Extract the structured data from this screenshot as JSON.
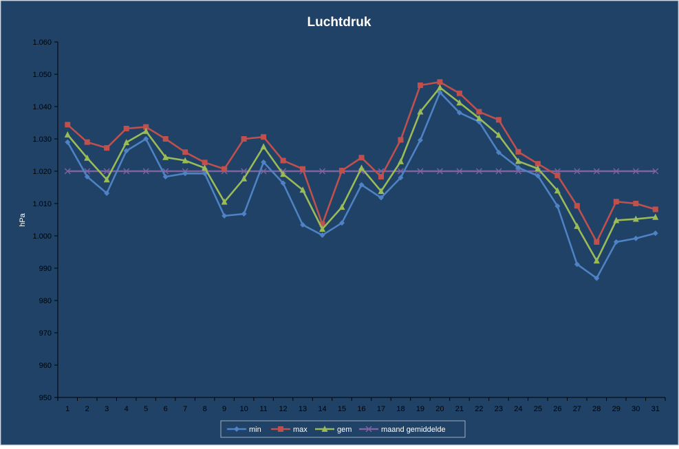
{
  "colors": {
    "background": "#1f4266",
    "border": "#9fb0c2",
    "text": "#ffffff",
    "tick_text": "#000000",
    "axis": "#000000",
    "min": "#4f82c4",
    "max": "#c0504d",
    "gem": "#9bbb59",
    "maand": "#8064a2"
  },
  "chart_data": {
    "type": "line",
    "title": "Luchtdruk",
    "ylabel": "hPa",
    "xlabel": "",
    "ylim": [
      950,
      1060
    ],
    "y_ticks": [
      950,
      960,
      970,
      980,
      990,
      1000,
      1010,
      1020,
      1030,
      1040,
      1050,
      1060
    ],
    "y_tick_labels": [
      "950",
      "960",
      "970",
      "980",
      "990",
      "1.000",
      "1.010",
      "1.020",
      "1.030",
      "1.040",
      "1.050",
      "1.060"
    ],
    "categories": [
      "1",
      "2",
      "3",
      "4",
      "5",
      "6",
      "7",
      "8",
      "9",
      "10",
      "11",
      "12",
      "13",
      "14",
      "15",
      "16",
      "17",
      "18",
      "19",
      "20",
      "21",
      "22",
      "23",
      "24",
      "25",
      "26",
      "27",
      "28",
      "29",
      "30",
      "31"
    ],
    "grid": false,
    "legend_position": "bottom",
    "series": [
      {
        "name": "min",
        "marker": "diamond",
        "color_key": "min",
        "values": [
          1029,
          1018.3,
          1013.2,
          1026.3,
          1030,
          1018.3,
          1019.3,
          1019.3,
          1006.2,
          1006.8,
          1022.8,
          1016.3,
          1003.4,
          1000.2,
          1004,
          1015.8,
          1011.8,
          1018,
          1029.6,
          1044.4,
          1038.1,
          1035.3,
          1025.8,
          1021.1,
          1018.6,
          1009.2,
          991.2,
          986.9,
          998.1,
          999.2,
          1000.8
        ]
      },
      {
        "name": "max",
        "marker": "square",
        "color_key": "max",
        "values": [
          1034.4,
          1029,
          1027.2,
          1033.2,
          1033.7,
          1030,
          1025.9,
          1022.7,
          1020.7,
          1030,
          1030.6,
          1023.3,
          1020.7,
          1003.6,
          1020.2,
          1024.2,
          1018.3,
          1029.7,
          1046.6,
          1047.6,
          1044.1,
          1038.4,
          1035.9,
          1026,
          1022.3,
          1018.7,
          1009.3,
          998.1,
          1010.6,
          1010,
          1008.2
        ]
      },
      {
        "name": "gem",
        "marker": "triangle",
        "color_key": "gem",
        "values": [
          1031.3,
          1024.1,
          1017.4,
          1028.9,
          1032.4,
          1024.3,
          1023.3,
          1021,
          1010.5,
          1017.7,
          1027.6,
          1019.1,
          1014.2,
          1002.1,
          1008.9,
          1021,
          1013.8,
          1023,
          1038.4,
          1045.9,
          1041.2,
          1036.4,
          1031.2,
          1023.1,
          1020.8,
          1014,
          1003,
          992.3,
          1004.8,
          1005.2,
          1005.8
        ]
      },
      {
        "name": "maand gemiddelde",
        "marker": "x",
        "color_key": "maand",
        "values": [
          1020,
          1020,
          1020,
          1020,
          1020,
          1020,
          1020,
          1020,
          1020,
          1020,
          1020,
          1020,
          1020,
          1020,
          1020,
          1020,
          1020,
          1020,
          1020,
          1020,
          1020,
          1020,
          1020,
          1020,
          1020,
          1020,
          1020,
          1020,
          1020,
          1020,
          1020
        ]
      }
    ]
  }
}
